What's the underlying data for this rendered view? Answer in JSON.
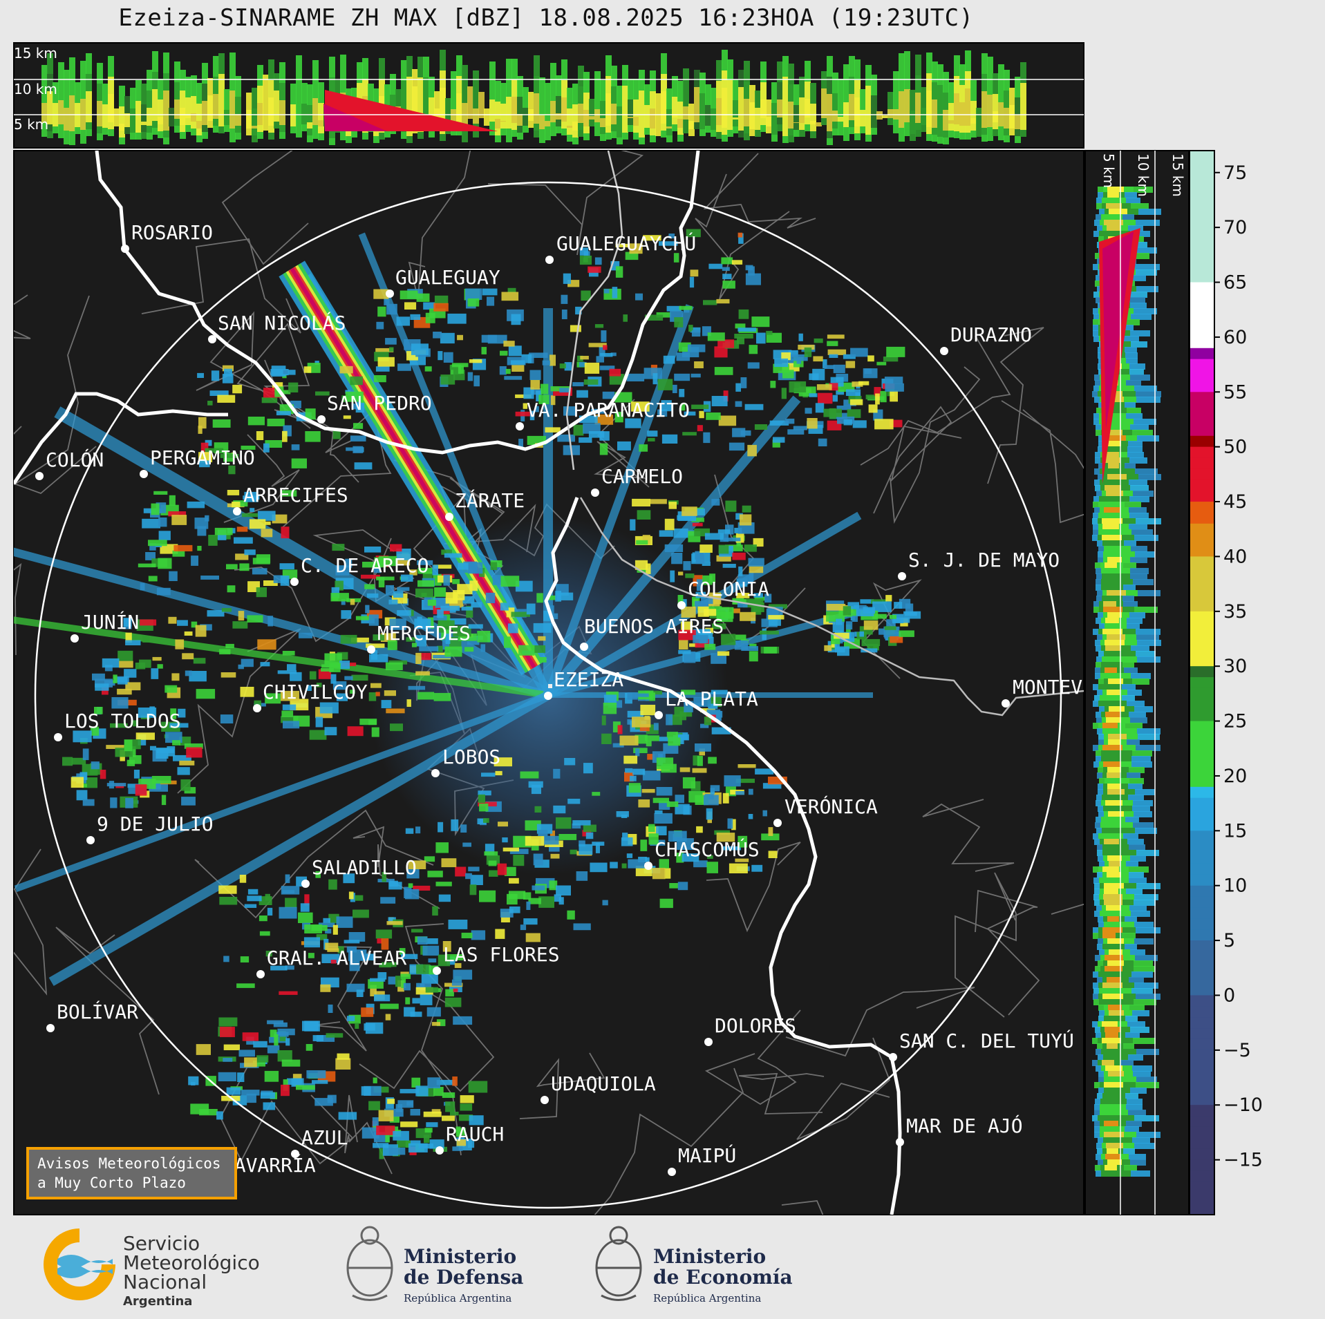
{
  "title": "Ezeiza-SINARAME ZH MAX [dBZ] 18.08.2025 16:23HOA (19:23UTC)",
  "cross_section_top": {
    "labels": [
      "15 km",
      "10 km",
      "5 km"
    ]
  },
  "cross_section_right": {
    "labels": [
      "5 km",
      "10 km",
      "15 km"
    ]
  },
  "colorbar": {
    "ticks": [
      "75",
      "70",
      "65",
      "60",
      "55",
      "50",
      "45",
      "40",
      "35",
      "30",
      "25",
      "20",
      "15",
      "10",
      "5",
      "0",
      "−5",
      "−10",
      "−15"
    ],
    "range": [
      -20,
      77
    ]
  },
  "cities": [
    {
      "name": "ROSARIO"
    },
    {
      "name": "GUALEGUAYCHÚ"
    },
    {
      "name": "GUALEGUAY"
    },
    {
      "name": "SAN NICOLÁS"
    },
    {
      "name": "DURAZNO"
    },
    {
      "name": "SAN PEDRO"
    },
    {
      "name": "VA. PARANACITO"
    },
    {
      "name": "COLÓN"
    },
    {
      "name": "PERGAMINO"
    },
    {
      "name": "CARMELO"
    },
    {
      "name": "ARRECIFES"
    },
    {
      "name": "ZÁRATE"
    },
    {
      "name": "C. DE ARECO"
    },
    {
      "name": "S. J. DE MAYO"
    },
    {
      "name": "COLONIA"
    },
    {
      "name": "JUNÍN"
    },
    {
      "name": "BUENOS AIRES"
    },
    {
      "name": "MERCEDES"
    },
    {
      "name": "EZEIZA"
    },
    {
      "name": "MONTEVIDEO"
    },
    {
      "name": "CHIVILCOY"
    },
    {
      "name": "LA PLATA"
    },
    {
      "name": "LOS TOLDOS"
    },
    {
      "name": "LOBOS"
    },
    {
      "name": "VERÓNICA"
    },
    {
      "name": "9 DE JULIO"
    },
    {
      "name": "CHASCOMÚS"
    },
    {
      "name": "SALADILLO"
    },
    {
      "name": "GRAL. ALVEAR"
    },
    {
      "name": "LAS FLORES"
    },
    {
      "name": "BOLÍVAR"
    },
    {
      "name": "DOLORES"
    },
    {
      "name": "SAN C. DEL TUYÚ"
    },
    {
      "name": "UDAQUIOLA"
    },
    {
      "name": "MAR DE AJÓ"
    },
    {
      "name": "RAUCH"
    },
    {
      "name": "AZUL"
    },
    {
      "name": "MAIPÚ"
    },
    {
      "name": "OLAVARRÍA"
    }
  ],
  "aviso": {
    "line1": "Avisos Meteorológicos",
    "line2": "a Muy Corto Plazo"
  },
  "logos": {
    "smn": {
      "line1": "Servicio",
      "line2": "Meteorológico",
      "line3": "Nacional",
      "line4": "Argentina"
    },
    "defensa": {
      "line1": "Ministerio",
      "line2": "de Defensa",
      "line3": "República Argentina"
    },
    "economia": {
      "line1": "Ministerio",
      "line2": "de Economía",
      "line3": "República Argentina"
    }
  }
}
